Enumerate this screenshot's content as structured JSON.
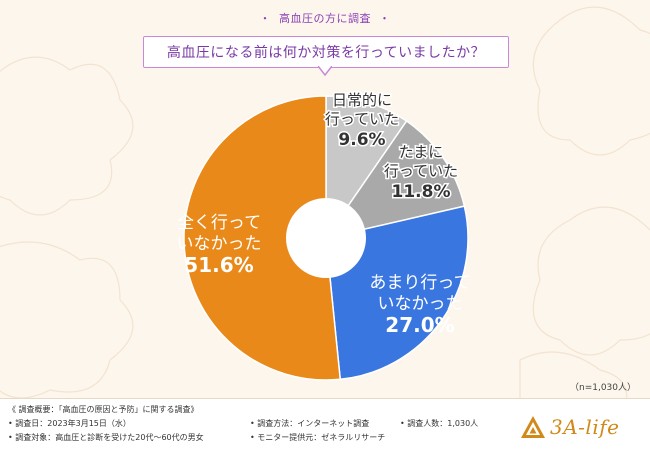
{
  "survey_label": "高血圧の方に調査",
  "title": "高血圧になる前は何か対策を行っていましたか？",
  "sample_size": "（n=1,030人）",
  "chart_data": {
    "type": "pie",
    "title": "高血圧になる前は何か対策を行っていましたか？",
    "unit": "%",
    "slices": [
      {
        "label_line1": "日常的に",
        "label_line2": "行っていた",
        "value": 9.6,
        "value_text": "9.6%",
        "color": "#c8c8c8",
        "label_color": "#333333"
      },
      {
        "label_line1": "たまに",
        "label_line2": "行っていた",
        "value": 11.8,
        "value_text": "11.8%",
        "color": "#a9a9a9",
        "label_color": "#333333"
      },
      {
        "label_line1": "あまり行って",
        "label_line2": "いなかった",
        "value": 27.0,
        "value_text": "27.0%",
        "color": "#3a76e0",
        "label_color": "#ffffff"
      },
      {
        "label_line1": "全く行って",
        "label_line2": "いなかった",
        "value": 51.6,
        "value_text": "51.6%",
        "color": "#e8891a",
        "label_color": "#ffffff"
      }
    ]
  },
  "footer": {
    "overview": "《 調査概要：「高血圧の原因と予防」に関する調査》",
    "date": "• 調査日：2023年3月15日（水）",
    "target": "• 調査対象：高血圧と診断を受けた20代〜60代の男女",
    "method": "• 調査方法：インターネット調査",
    "provider": "• モニター提供元：ゼネラルリサーチ",
    "count": "• 調査人数：1,030人"
  },
  "brand": {
    "name": "3A-life",
    "color": "#d18a1a"
  }
}
